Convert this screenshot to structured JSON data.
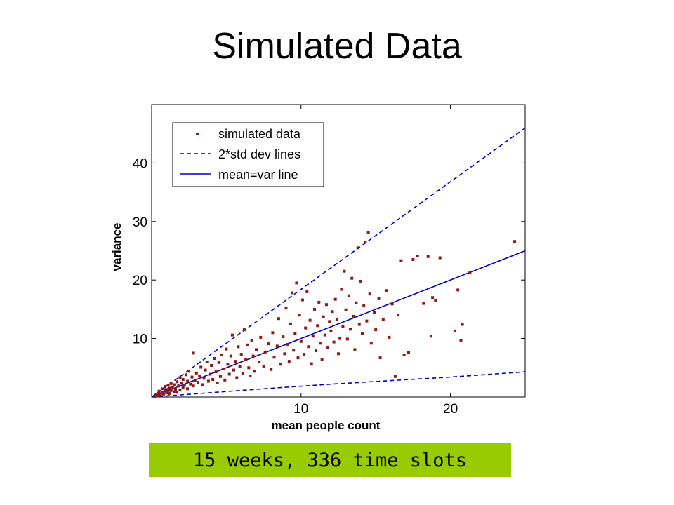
{
  "slide": {
    "title": "Simulated Data",
    "caption": "15 weeks, 336 time slots",
    "caption_bg": "#99cc00"
  },
  "chart_data": {
    "type": "scatter",
    "xlabel": "mean people count",
    "ylabel": "variance",
    "xlim": [
      0,
      25
    ],
    "ylim": [
      0,
      50
    ],
    "xticks": [
      10,
      20
    ],
    "yticks": [
      10,
      20,
      30,
      40
    ],
    "grid": false,
    "legend_position": "top-left",
    "colors": {
      "points": "#8b1a1a",
      "lines": "#0000cc"
    },
    "series": [
      {
        "name": "simulated data",
        "kind": "points",
        "points": [
          [
            0.2,
            0.1
          ],
          [
            0.3,
            0.4
          ],
          [
            0.4,
            0.2
          ],
          [
            0.5,
            0.6
          ],
          [
            0.5,
            1.0
          ],
          [
            0.6,
            0.3
          ],
          [
            0.7,
            0.8
          ],
          [
            0.7,
            1.4
          ],
          [
            0.8,
            0.5
          ],
          [
            0.9,
            1.1
          ],
          [
            0.9,
            1.8
          ],
          [
            1.0,
            0.7
          ],
          [
            1.0,
            1.3
          ],
          [
            1.1,
            0.9
          ],
          [
            1.1,
            2.0
          ],
          [
            1.2,
            1.5
          ],
          [
            1.2,
            0.6
          ],
          [
            1.3,
            1.1
          ],
          [
            1.3,
            2.3
          ],
          [
            1.4,
            1.7
          ],
          [
            1.5,
            0.9
          ],
          [
            1.5,
            2.1
          ],
          [
            1.6,
            1.3
          ],
          [
            1.7,
            2.6
          ],
          [
            1.7,
            0.8
          ],
          [
            1.8,
            1.9
          ],
          [
            1.9,
            3.3
          ],
          [
            1.9,
            1.2
          ],
          [
            2.0,
            2.4
          ],
          [
            2.1,
            1.6
          ],
          [
            2.1,
            3.0
          ],
          [
            2.2,
            2.0
          ],
          [
            2.3,
            3.8
          ],
          [
            2.4,
            1.4
          ],
          [
            2.4,
            2.7
          ],
          [
            2.5,
            4.4
          ],
          [
            2.6,
            2.2
          ],
          [
            2.7,
            3.4
          ],
          [
            2.8,
            1.9
          ],
          [
            2.8,
            7.5
          ],
          [
            2.9,
            2.8
          ],
          [
            3.0,
            4.1
          ],
          [
            3.1,
            2.5
          ],
          [
            3.2,
            3.6
          ],
          [
            3.3,
            5.1
          ],
          [
            3.4,
            2.1
          ],
          [
            3.5,
            3.2
          ],
          [
            3.6,
            4.6
          ],
          [
            3.7,
            6.0
          ],
          [
            3.8,
            2.7
          ],
          [
            3.9,
            3.9
          ],
          [
            4.0,
            5.4
          ],
          [
            4.1,
            3.0
          ],
          [
            4.2,
            6.6
          ],
          [
            4.3,
            4.3
          ],
          [
            4.4,
            2.4
          ],
          [
            4.5,
            5.9
          ],
          [
            4.6,
            3.5
          ],
          [
            4.7,
            7.2
          ],
          [
            4.8,
            4.8
          ],
          [
            4.9,
            2.9
          ],
          [
            5.0,
            8.2
          ],
          [
            5.1,
            5.6
          ],
          [
            5.2,
            3.9
          ],
          [
            5.3,
            7.0
          ],
          [
            5.4,
            10.6
          ],
          [
            5.5,
            4.6
          ],
          [
            5.6,
            6.1
          ],
          [
            5.7,
            3.3
          ],
          [
            5.8,
            8.6
          ],
          [
            5.9,
            5.2
          ],
          [
            6.0,
            7.3
          ],
          [
            6.1,
            4.0
          ],
          [
            6.2,
            11.5
          ],
          [
            6.3,
            6.4
          ],
          [
            6.4,
            8.9
          ],
          [
            6.5,
            5.0
          ],
          [
            6.6,
            3.6
          ],
          [
            6.7,
            9.6
          ],
          [
            6.8,
            7.0
          ],
          [
            6.9,
            4.4
          ],
          [
            7.0,
            8.1
          ],
          [
            7.2,
            6.0
          ],
          [
            7.3,
            10.2
          ],
          [
            7.5,
            5.2
          ],
          [
            7.6,
            7.7
          ],
          [
            7.8,
            9.1
          ],
          [
            8.0,
            4.7
          ],
          [
            8.1,
            11.0
          ],
          [
            8.2,
            6.8
          ],
          [
            8.4,
            8.7
          ],
          [
            8.5,
            13.4
          ],
          [
            8.6,
            5.6
          ],
          [
            8.8,
            10.3
          ],
          [
            8.9,
            7.4
          ],
          [
            9.0,
            15.2
          ],
          [
            9.1,
            9.0
          ],
          [
            9.2,
            6.1
          ],
          [
            9.3,
            12.5
          ],
          [
            9.4,
            17.8
          ],
          [
            9.5,
            8.0
          ],
          [
            9.6,
            10.9
          ],
          [
            9.7,
            19.5
          ],
          [
            9.8,
            6.7
          ],
          [
            9.9,
            14.0
          ],
          [
            10.0,
            9.5
          ],
          [
            10.1,
            16.6
          ],
          [
            10.2,
            7.3
          ],
          [
            10.3,
            11.8
          ],
          [
            10.4,
            18.0
          ],
          [
            10.5,
            8.6
          ],
          [
            10.6,
            13.1
          ],
          [
            10.7,
            5.7
          ],
          [
            10.8,
            10.4
          ],
          [
            10.9,
            15.0
          ],
          [
            11.0,
            7.9
          ],
          [
            11.1,
            12.2
          ],
          [
            11.2,
            16.2
          ],
          [
            11.3,
            9.2
          ],
          [
            11.4,
            6.4
          ],
          [
            11.5,
            13.7
          ],
          [
            11.6,
            10.6
          ],
          [
            11.7,
            15.8
          ],
          [
            11.8,
            8.5
          ],
          [
            11.9,
            12.9
          ],
          [
            12.0,
            11.3
          ],
          [
            12.1,
            14.6
          ],
          [
            12.2,
            9.4
          ],
          [
            12.3,
            16.7
          ],
          [
            12.4,
            13.2
          ],
          [
            12.5,
            7.4
          ],
          [
            12.6,
            10.0
          ],
          [
            12.7,
            18.4
          ],
          [
            12.8,
            12.0
          ],
          [
            12.9,
            21.5
          ],
          [
            13.0,
            14.9
          ],
          [
            13.1,
            9.9
          ],
          [
            13.2,
            17.3
          ],
          [
            13.3,
            11.6
          ],
          [
            13.4,
            20.3
          ],
          [
            13.5,
            13.8
          ],
          [
            13.6,
            8.1
          ],
          [
            13.7,
            16.1
          ],
          [
            13.8,
            25.5
          ],
          [
            13.9,
            12.4
          ],
          [
            14.0,
            19.8
          ],
          [
            14.1,
            10.8
          ],
          [
            14.2,
            15.6
          ],
          [
            14.3,
            26.5
          ],
          [
            14.4,
            13.0
          ],
          [
            14.5,
            28.1
          ],
          [
            14.6,
            17.6
          ],
          [
            14.7,
            9.2
          ],
          [
            14.9,
            14.4
          ],
          [
            15.0,
            11.5
          ],
          [
            15.2,
            16.8
          ],
          [
            15.3,
            6.7
          ],
          [
            15.5,
            13.3
          ],
          [
            15.7,
            18.2
          ],
          [
            15.9,
            10.2
          ],
          [
            16.1,
            15.9
          ],
          [
            16.3,
            3.5
          ],
          [
            16.5,
            14.0
          ],
          [
            16.7,
            23.3
          ],
          [
            16.9,
            7.2
          ],
          [
            17.2,
            7.6
          ],
          [
            17.5,
            23.5
          ],
          [
            17.8,
            24.1
          ],
          [
            18.2,
            16.0
          ],
          [
            18.5,
            24.0
          ],
          [
            18.7,
            10.4
          ],
          [
            18.8,
            17.0
          ],
          [
            19.0,
            16.5
          ],
          [
            19.3,
            23.8
          ],
          [
            20.3,
            11.3
          ],
          [
            20.5,
            18.3
          ],
          [
            20.7,
            9.6
          ],
          [
            20.8,
            12.4
          ],
          [
            21.3,
            21.3
          ],
          [
            24.3,
            26.6
          ]
        ]
      },
      {
        "name": "2*std dev lines",
        "kind": "dashed-lines",
        "upper": {
          "x": [
            0,
            25
          ],
          "y": [
            0,
            46
          ]
        },
        "lower": {
          "x": [
            0,
            8,
            12,
            16,
            20,
            25
          ],
          "y": [
            0,
            1.5,
            2.2,
            2.8,
            3.4,
            4.3
          ]
        }
      },
      {
        "name": "mean=var line",
        "kind": "line",
        "x": [
          0,
          25
        ],
        "y": [
          0,
          25
        ]
      }
    ]
  }
}
